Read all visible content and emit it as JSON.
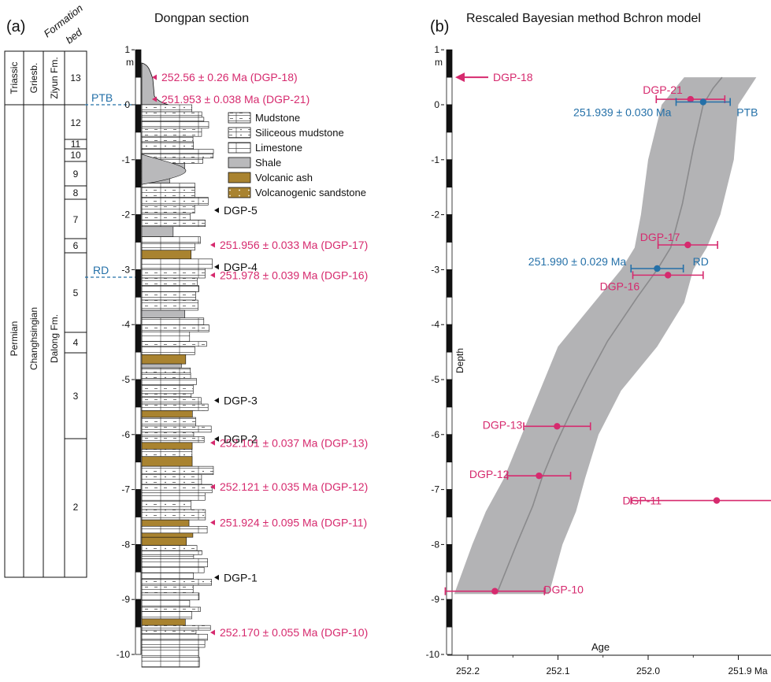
{
  "panel_a": {
    "label": "(a)",
    "title": "Dongpan section",
    "header_line1": "Formation",
    "header_line2": "bed",
    "depth_unit": "m",
    "depth_ticks": [
      "1",
      "0",
      "-1",
      "-2",
      "-3",
      "-4",
      "-5",
      "-6",
      "-7",
      "-8",
      "-9",
      "-10"
    ],
    "systems": {
      "triassic": "Triassic",
      "permian": "Permian"
    },
    "stages": {
      "griesbachian": "Griesb.",
      "changhsingian": "Changhsingian"
    },
    "formations": {
      "ziyun": "Ziyun Fm.",
      "dalong": "Dalong Fm."
    },
    "beds": [
      "13",
      "12",
      "11",
      "10",
      "9",
      "8",
      "7",
      "6",
      "5",
      "4",
      "3",
      "2"
    ],
    "boundaries": {
      "ptb": "PTB",
      "rd": "RD"
    },
    "legend": [
      {
        "label": "Mudstone",
        "pattern": "mudstone"
      },
      {
        "label": "Siliceous mudstone",
        "pattern": "siliceous"
      },
      {
        "label": "Limestone",
        "pattern": "limestone"
      },
      {
        "label": "Shale",
        "pattern": "shale"
      },
      {
        "label": "Volcanic ash",
        "pattern": "ash"
      },
      {
        "label": "Volcanogenic sandstone",
        "pattern": "sandstone"
      }
    ],
    "dated_samples": [
      {
        "label": "252.56 ± 0.26 Ma (DGP-18)",
        "depth": 0.5
      },
      {
        "label": "251.953 ± 0.038 Ma (DGP-21)",
        "depth": 0.1
      },
      {
        "label": "251.956 ± 0.033 Ma (DGP-17)",
        "depth": -2.55
      },
      {
        "label": "251.978 ± 0.039 Ma (DGP-16)",
        "depth": -3.1
      },
      {
        "label": "252.101 ± 0.037 Ma (DGP-13)",
        "depth": -6.15
      },
      {
        "label": "252.121 ± 0.035 Ma (DGP-12)",
        "depth": -6.95
      },
      {
        "label": "251.924 ± 0.095 Ma (DGP-11)",
        "depth": -7.6
      },
      {
        "label": "252.170 ± 0.055 Ma (DGP-10)",
        "depth": -9.6
      }
    ],
    "other_samples": [
      {
        "label": "DGP-5",
        "depth": -1.92
      },
      {
        "label": "DGP-4",
        "depth": -2.95
      },
      {
        "label": "DGP-3",
        "depth": -5.38
      },
      {
        "label": "DGP-2",
        "depth": -6.08
      },
      {
        "label": "DGP-1",
        "depth": -8.6
      }
    ],
    "colors": {
      "date": "#d62a6e",
      "boundary": "#2470a8",
      "shale": "#b9b9bb",
      "ash": "#a98330",
      "black": "#111111"
    }
  },
  "panel_b": {
    "label": "(b)",
    "title": "Rescaled Bayesian method Bchron model",
    "ylabel": "Depth",
    "xlabel": "Age",
    "depth_unit": "m",
    "x_unit": "Ma",
    "x_ticks": [
      "252.2",
      "252.1",
      "252.0",
      "251.9 Ma"
    ],
    "y_ticks": [
      "1",
      "0",
      "-1",
      "-2",
      "-3",
      "-4",
      "-5",
      "-6",
      "-7",
      "-8",
      "-9",
      "-10"
    ],
    "arrow_label": "DGP-18",
    "boundary_ages": [
      {
        "label": "251.939 ± 0.030 Ma",
        "tag": "PTB",
        "age": 251.939,
        "err": 0.03,
        "depth": 0.05
      },
      {
        "label": "251.990 ± 0.029 Ma",
        "tag": "RD",
        "age": 251.99,
        "err": 0.029,
        "depth": -2.98
      }
    ]
  },
  "chart_data": {
    "type": "scatter",
    "title": "Rescaled Bayesian method Bchron model",
    "xlabel": "Age",
    "ylabel": "Depth",
    "x_unit": "Ma",
    "y_unit": "m",
    "xlim": [
      252.23,
      251.84
    ],
    "ylim": [
      -10,
      1
    ],
    "x_reversed": true,
    "x_ticks": [
      252.2,
      252.1,
      252.0,
      251.9
    ],
    "y_ticks": [
      1,
      0,
      -1,
      -2,
      -3,
      -4,
      -5,
      -6,
      -7,
      -8,
      -9,
      -10
    ],
    "series": [
      {
        "name": "",
        "points": [
          {
            "label": "DGP-21",
            "age": 251.953,
            "err": 0.038,
            "depth": 0.1
          },
          {
            "label": "DGP-17",
            "age": 251.956,
            "err": 0.033,
            "depth": -2.55
          },
          {
            "label": "DGP-16",
            "age": 251.978,
            "err": 0.039,
            "depth": -3.1
          },
          {
            "label": "DGP-13",
            "age": 252.101,
            "err": 0.037,
            "depth": -5.85
          },
          {
            "label": "DGP-12",
            "age": 252.121,
            "err": 0.035,
            "depth": -6.75
          },
          {
            "label": "DGP-11",
            "age": 251.924,
            "err": 0.095,
            "depth": -7.2
          },
          {
            "label": "DGP-10",
            "age": 252.17,
            "err": 0.055,
            "depth": -8.85
          }
        ]
      }
    ],
    "model_median": [
      {
        "depth": 0.5,
        "age": 251.918
      },
      {
        "depth": 0.3,
        "age": 251.928
      },
      {
        "depth": 0.0,
        "age": 251.939
      },
      {
        "depth": -0.8,
        "age": 251.95
      },
      {
        "depth": -1.8,
        "age": 251.962
      },
      {
        "depth": -2.6,
        "age": 251.975
      },
      {
        "depth": -3.0,
        "age": 251.99
      },
      {
        "depth": -3.5,
        "age": 252.012
      },
      {
        "depth": -4.3,
        "age": 252.045
      },
      {
        "depth": -5.0,
        "age": 252.068
      },
      {
        "depth": -5.6,
        "age": 252.086
      },
      {
        "depth": -6.2,
        "age": 252.103
      },
      {
        "depth": -6.8,
        "age": 252.118
      },
      {
        "depth": -7.3,
        "age": 252.128
      },
      {
        "depth": -8.0,
        "age": 252.146
      },
      {
        "depth": -8.9,
        "age": 252.168
      }
    ],
    "model_band": [
      {
        "depth": 0.5,
        "young": 251.88,
        "old": 251.96
      },
      {
        "depth": 0.0,
        "young": 251.9,
        "old": 251.985
      },
      {
        "depth": -1.0,
        "young": 251.905,
        "old": 252.0
      },
      {
        "depth": -2.0,
        "young": 251.92,
        "old": 252.008
      },
      {
        "depth": -2.6,
        "young": 251.935,
        "old": 252.015
      },
      {
        "depth": -3.0,
        "young": 251.95,
        "old": 252.03
      },
      {
        "depth": -3.6,
        "young": 251.96,
        "old": 252.06
      },
      {
        "depth": -4.4,
        "young": 251.99,
        "old": 252.1
      },
      {
        "depth": -5.2,
        "young": 252.03,
        "old": 252.12
      },
      {
        "depth": -6.0,
        "young": 252.055,
        "old": 252.14
      },
      {
        "depth": -6.8,
        "young": 252.07,
        "old": 252.16
      },
      {
        "depth": -7.4,
        "young": 252.08,
        "old": 252.18
      },
      {
        "depth": -8.0,
        "young": 252.095,
        "old": 252.195
      },
      {
        "depth": -8.9,
        "young": 252.11,
        "old": 252.215
      }
    ],
    "annotations": [
      {
        "label": "DGP-18",
        "depth": 0.5
      },
      {
        "label": "PTB",
        "depth": 0.05
      },
      {
        "label": "RD",
        "depth": -2.98
      }
    ]
  }
}
